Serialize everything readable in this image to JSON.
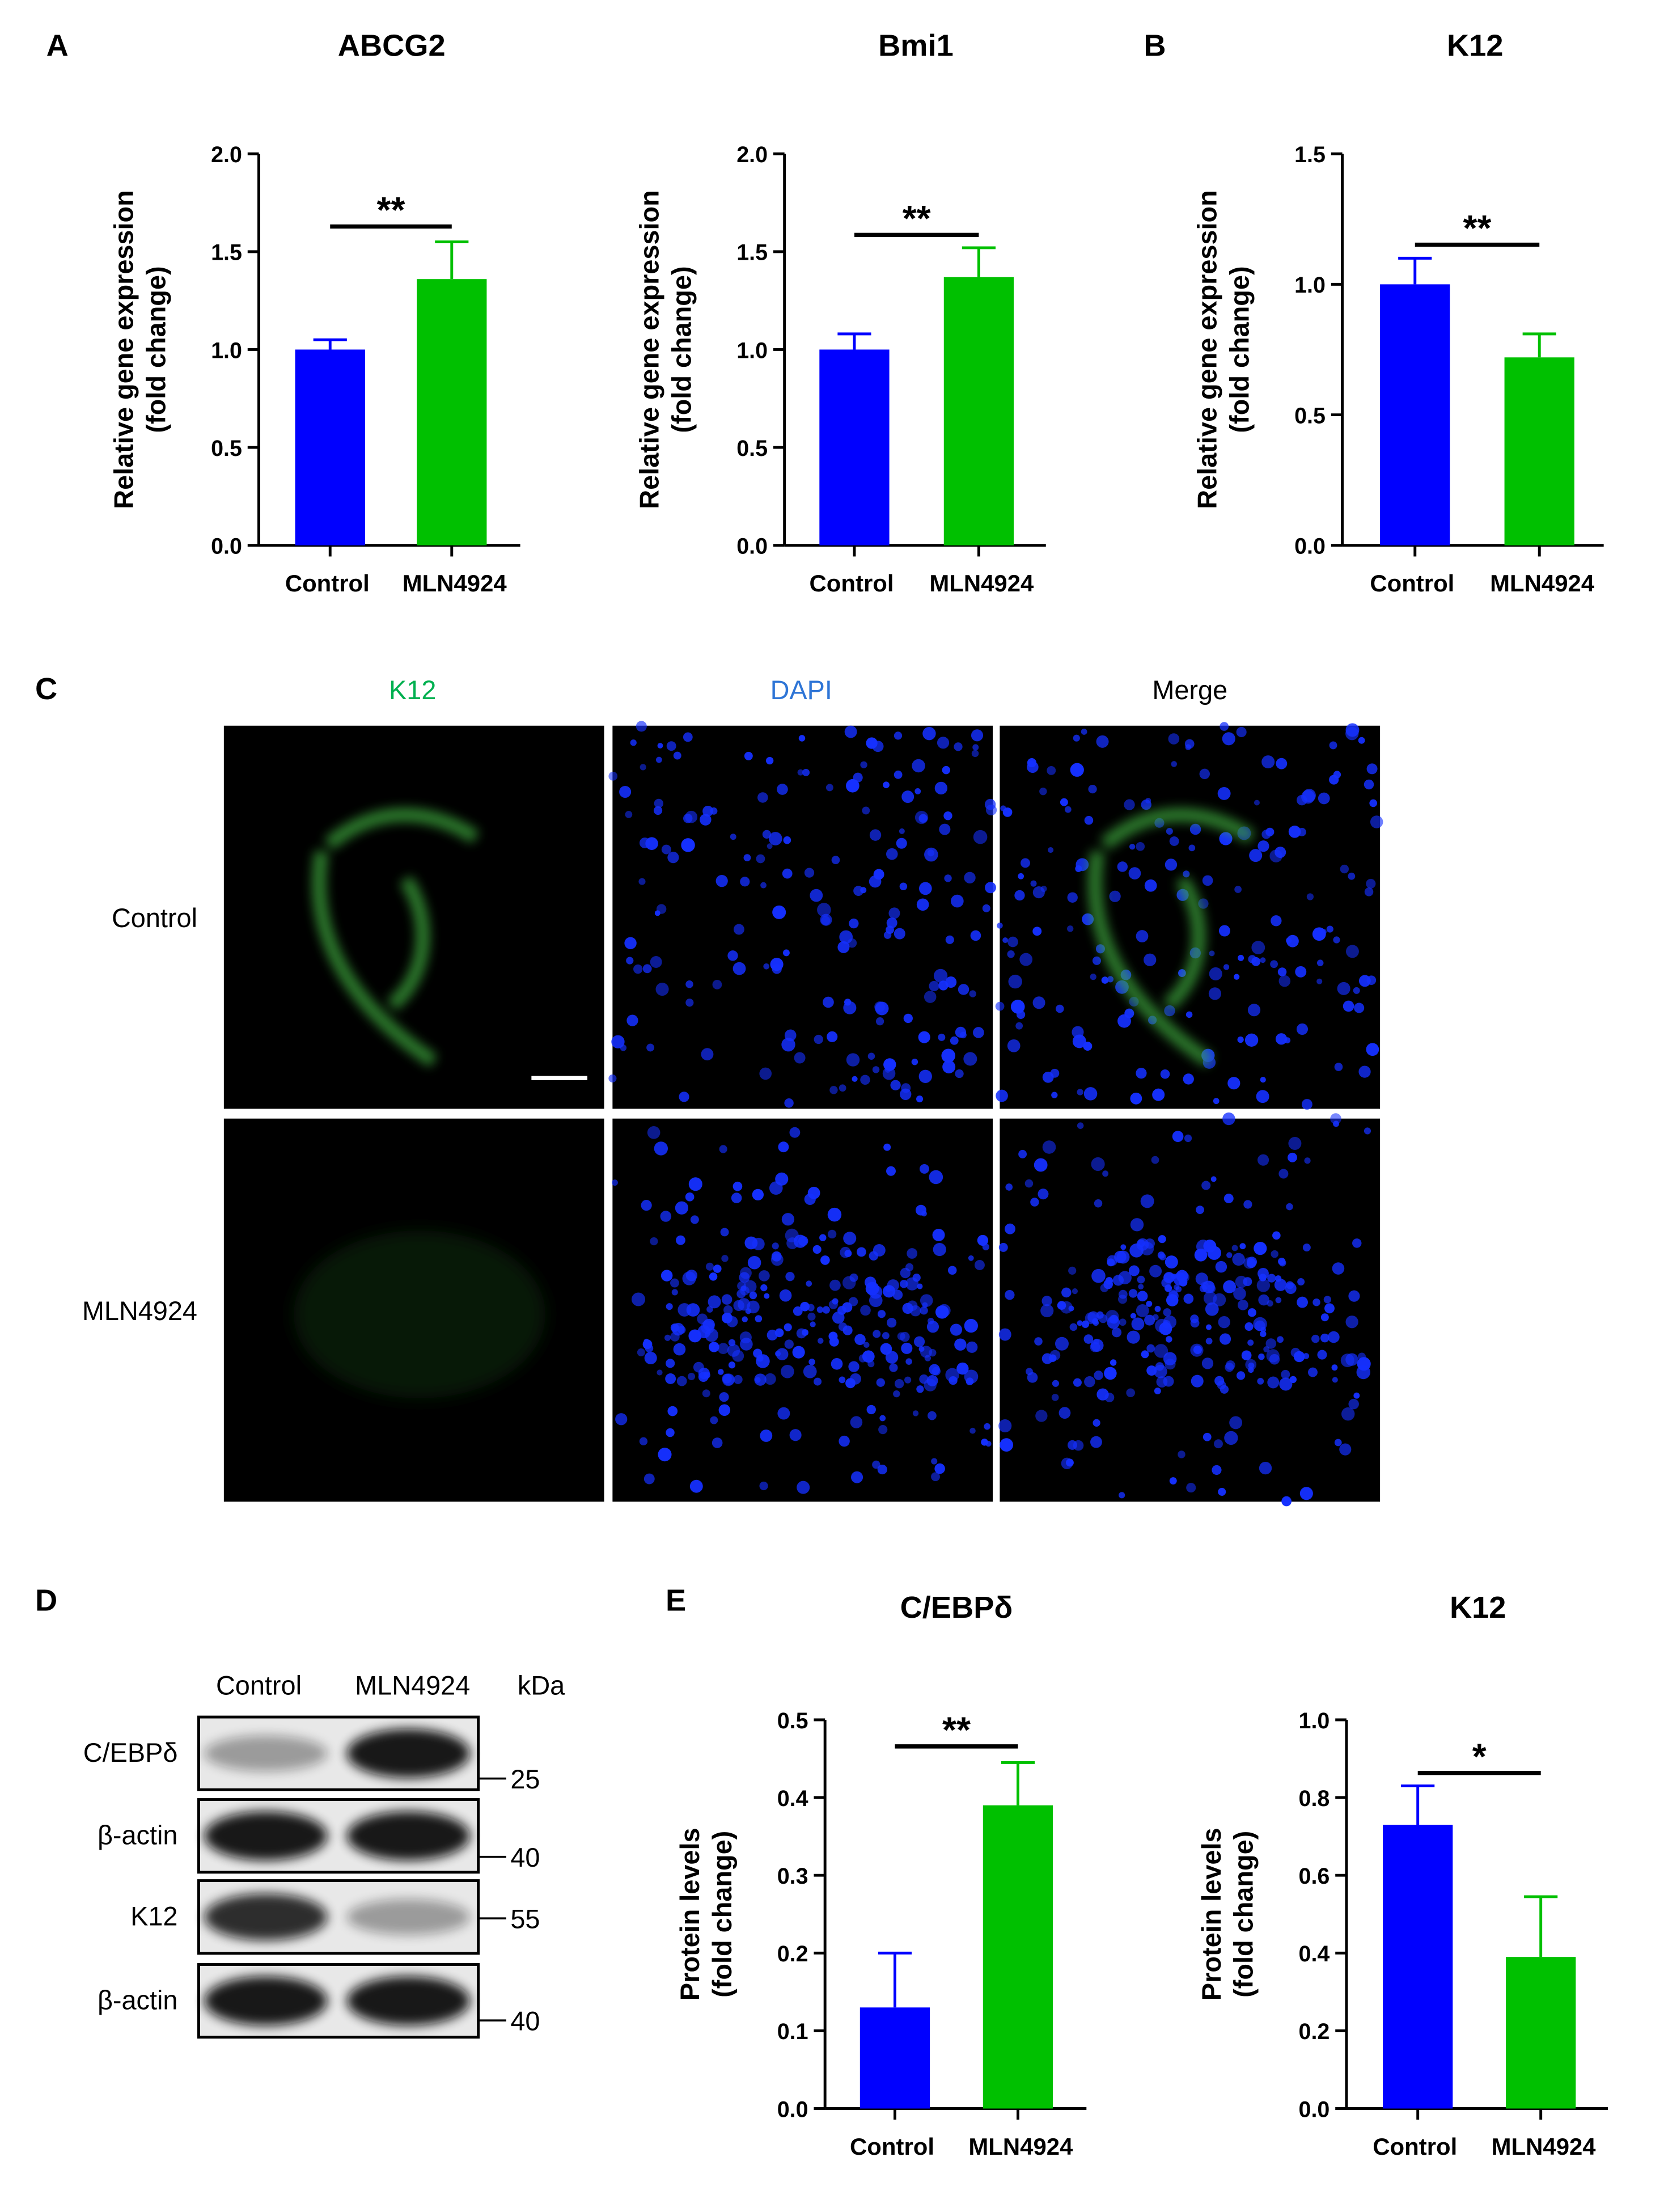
{
  "panels": {
    "A": "A",
    "B": "B",
    "C": "C",
    "D": "D",
    "E": "E"
  },
  "chart_data": [
    {
      "type": "bar",
      "title": "ABCG2",
      "ylabel": [
        "Relative gene expression",
        "(fold change)"
      ],
      "categories": [
        "Control",
        "MLN4924"
      ],
      "values": [
        1.0,
        1.36
      ],
      "errors": [
        0.05,
        0.19
      ],
      "colors": [
        "#0000ff",
        "#00c000"
      ],
      "ylim": [
        0,
        2
      ],
      "yticks": [
        {
          "value": 0,
          "label": "0.0"
        },
        {
          "value": 0.5,
          "label": "0.5"
        },
        {
          "value": 1,
          "label": "1.0"
        },
        {
          "value": 1.5,
          "label": "1.5"
        },
        {
          "value": 2,
          "label": "2.0"
        }
      ],
      "significance": "**"
    },
    {
      "type": "bar",
      "title": "Bmi1",
      "ylabel": [
        "Relative gene expression",
        "(fold change)"
      ],
      "categories": [
        "Control",
        "MLN4924"
      ],
      "values": [
        1.0,
        1.37
      ],
      "errors": [
        0.08,
        0.15
      ],
      "colors": [
        "#0000ff",
        "#00c000"
      ],
      "ylim": [
        0,
        2
      ],
      "yticks": [
        {
          "value": 0,
          "label": "0.0"
        },
        {
          "value": 0.5,
          "label": "0.5"
        },
        {
          "value": 1,
          "label": "1.0"
        },
        {
          "value": 1.5,
          "label": "1.5"
        },
        {
          "value": 2,
          "label": "2.0"
        }
      ],
      "significance": "**"
    },
    {
      "type": "bar",
      "title": "K12",
      "ylabel": [
        "Relative gene expression",
        "(fold change)"
      ],
      "categories": [
        "Control",
        "MLN4924"
      ],
      "values": [
        1.0,
        0.72
      ],
      "errors": [
        0.1,
        0.09
      ],
      "colors": [
        "#0000ff",
        "#00c000"
      ],
      "ylim": [
        0,
        1.5
      ],
      "yticks": [
        {
          "value": 0,
          "label": "0.0"
        },
        {
          "value": 0.5,
          "label": "0.5"
        },
        {
          "value": 1,
          "label": "1.0"
        },
        {
          "value": 1.5,
          "label": "1.5"
        }
      ],
      "significance": "**"
    },
    {
      "type": "bar",
      "title": "C/EBPδ",
      "ylabel": [
        "Protein levels",
        "(fold change)"
      ],
      "categories": [
        "Control",
        "MLN4924"
      ],
      "values": [
        0.13,
        0.39
      ],
      "errors": [
        0.07,
        0.055
      ],
      "colors": [
        "#0000ff",
        "#00c000"
      ],
      "ylim": [
        0,
        0.5
      ],
      "yticks": [
        {
          "value": 0,
          "label": "0.0"
        },
        {
          "value": 0.1,
          "label": "0.1"
        },
        {
          "value": 0.2,
          "label": "0.2"
        },
        {
          "value": 0.3,
          "label": "0.3"
        },
        {
          "value": 0.4,
          "label": "0.4"
        },
        {
          "value": 0.5,
          "label": "0.5"
        }
      ],
      "significance": "**"
    },
    {
      "type": "bar",
      "title": "K12",
      "ylabel": [
        "Protein levels",
        "(fold change)"
      ],
      "categories": [
        "Control",
        "MLN4924"
      ],
      "values": [
        0.73,
        0.39
      ],
      "errors": [
        0.1,
        0.155
      ],
      "colors": [
        "#0000ff",
        "#00c000"
      ],
      "ylim": [
        0,
        1
      ],
      "yticks": [
        {
          "value": 0,
          "label": "0.0"
        },
        {
          "value": 0.2,
          "label": "0.2"
        },
        {
          "value": 0.4,
          "label": "0.4"
        },
        {
          "value": 0.6,
          "label": "0.6"
        },
        {
          "value": 0.8,
          "label": "0.8"
        },
        {
          "value": 1,
          "label": "1.0"
        }
      ],
      "significance": "*"
    }
  ],
  "immunofluorescence": {
    "columns": [
      "K12",
      "DAPI",
      "Merge"
    ],
    "rows": [
      "Control",
      "MLN4924"
    ]
  },
  "western_blot": {
    "columns": [
      "Control",
      "MLN4924",
      "kDa"
    ],
    "rows": [
      {
        "label": "C/EBPδ",
        "kda": 25
      },
      {
        "label": "β-actin",
        "kda": 40
      },
      {
        "label": "K12",
        "kda": 55
      },
      {
        "label": "β-actin",
        "kda": 40
      }
    ]
  }
}
